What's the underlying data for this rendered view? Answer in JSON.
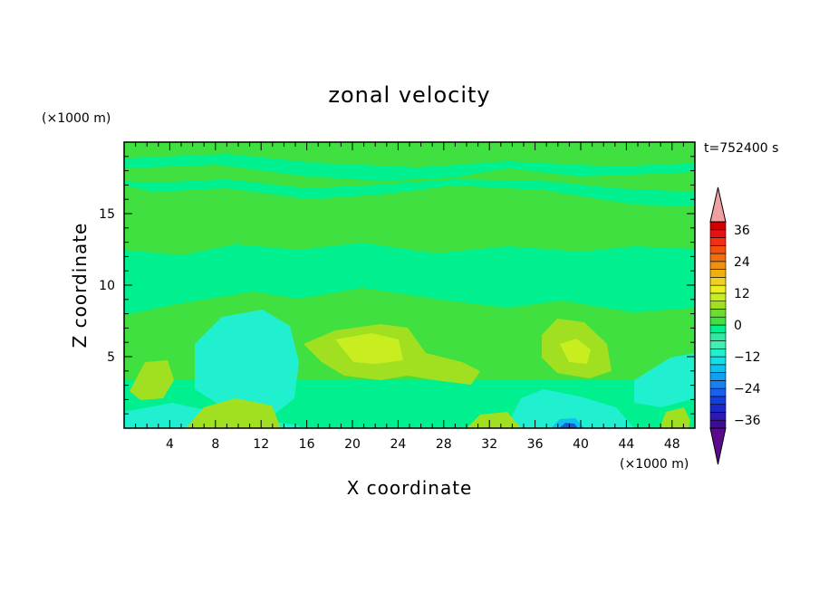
{
  "chart_data": {
    "type": "heatmap",
    "title": "zonal velocity",
    "xlabel": "X coordinate",
    "ylabel": "Z coordinate",
    "x_unit": "(×1000 m)",
    "y_unit": "(×1000 m)",
    "time_label": "t=752400 s",
    "xlim": [
      0,
      50
    ],
    "ylim": [
      0,
      20
    ],
    "x_ticks": [
      4,
      8,
      12,
      16,
      20,
      24,
      28,
      32,
      36,
      40,
      44,
      48
    ],
    "y_ticks": [
      5,
      10,
      15
    ],
    "colorbar": {
      "levels": [
        -42,
        -39,
        -36,
        -33,
        -30,
        -27,
        -24,
        -21,
        -18,
        -15,
        -12,
        -9,
        -6,
        -3,
        0,
        3,
        6,
        9,
        12,
        15,
        18,
        21,
        24,
        27,
        30,
        33,
        36,
        39,
        42
      ],
      "labels": [
        36,
        24,
        12,
        0,
        -12,
        -24,
        -36
      ],
      "extend": "both",
      "colors": [
        "#5a0a8a",
        "#3d0a9a",
        "#2a1ab0",
        "#1a28c8",
        "#1040e0",
        "#1a60ee",
        "#1a80f0",
        "#10a0f0",
        "#10c0f0",
        "#10e0e8",
        "#20f0d0",
        "#40f0b0",
        "#30e8a0",
        "#00f090",
        "#40e040",
        "#6cdc30",
        "#a0e020",
        "#c8ee20",
        "#e8f020",
        "#f0d020",
        "#f0b010",
        "#f09010",
        "#f07010",
        "#f05010",
        "#f03010",
        "#e81010",
        "#d00000",
        "#f0a0a0"
      ]
    },
    "regions": [
      {
        "desc": "upper layer",
        "z_range": [
          10,
          20
        ],
        "value_approx": 3
      },
      {
        "desc": "mid layer",
        "z_range": [
          7,
          11
        ],
        "value_approx": 0
      },
      {
        "desc": "warm blob",
        "x_range": [
          18,
          30
        ],
        "z_range": [
          3,
          8
        ],
        "value_approx": 10
      },
      {
        "desc": "warm blob",
        "x_range": [
          36,
          42
        ],
        "z_range": [
          2,
          7
        ],
        "value_approx": 10
      },
      {
        "desc": "cool blob",
        "x_range": [
          6,
          16
        ],
        "z_range": [
          2,
          8
        ],
        "value_approx": -6
      },
      {
        "desc": "cool core",
        "x_range": [
          37,
          40
        ],
        "z_range": [
          0,
          1
        ],
        "value_approx": -24
      }
    ]
  }
}
